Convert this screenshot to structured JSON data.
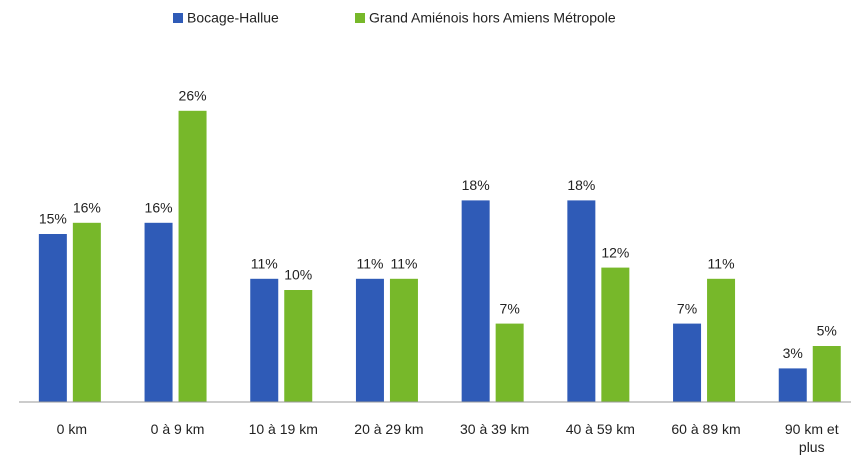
{
  "chart_data": {
    "type": "bar",
    "categories": [
      "0 km",
      "0 à 9 km",
      "10 à 19 km",
      "20 à 29 km",
      "30 à 39 km",
      "40 à 59 km",
      "60 à 89 km",
      "90 km et plus"
    ],
    "series": [
      {
        "name": "Bocage-Hallue",
        "color": "#2f5bb7",
        "values": [
          15,
          16,
          11,
          11,
          18,
          18,
          7,
          3
        ],
        "value_labels": [
          "15%",
          "16%",
          "11%",
          "11%",
          "18%",
          "18%",
          "7%",
          "3%"
        ]
      },
      {
        "name": "Grand Amiénois hors Amiens Métropole",
        "color": "#77b82a",
        "values": [
          16,
          26,
          10,
          11,
          7,
          12,
          11,
          5
        ],
        "value_labels": [
          "16%",
          "26%",
          "10%",
          "11%",
          "7%",
          "12%",
          "11%",
          "5%"
        ]
      }
    ],
    "ylim": [
      0,
      30
    ],
    "legend": "top"
  }
}
